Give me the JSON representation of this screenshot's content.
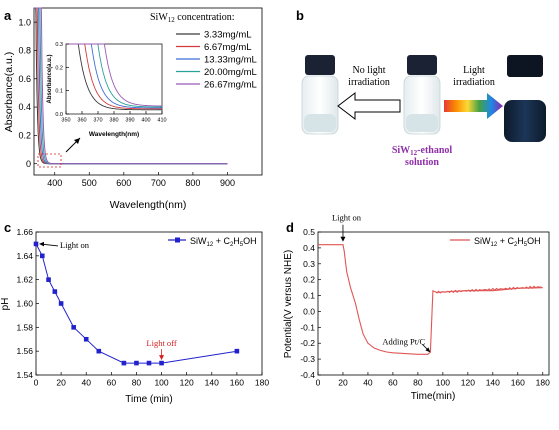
{
  "panels": {
    "a": "a",
    "b": "b",
    "c": "c",
    "d": "d"
  },
  "chart_data": [
    {
      "id": "a",
      "type": "line",
      "xlabel": "Wavelength(nm)",
      "ylabel": "Absorbance(a.u.)",
      "xlim": [
        340,
        1000
      ],
      "ylim": [
        -0.08,
        1.1
      ],
      "xticks": [
        "400",
        "500",
        "600",
        "700",
        "800",
        "900"
      ],
      "yticks": [
        "0",
        "0.2",
        "0.4",
        "0.6",
        "0.8",
        "1.0"
      ],
      "legend_title_pre": "SiW",
      "legend_title_sub": "12",
      "legend_title_post": " concentration:",
      "legend_position": "top-right",
      "series": [
        {
          "name": "3.33mg/mL",
          "color": "#3a3a3a",
          "edge": 363
        },
        {
          "name": "6.67mg/mL",
          "color": "#d43a3a",
          "edge": 367
        },
        {
          "name": "13.33mg/mL",
          "color": "#3e6fd8",
          "edge": 371
        },
        {
          "name": "20.00mg/mL",
          "color": "#2aa198",
          "edge": 375
        },
        {
          "name": "26.67mg/mL",
          "color": "#9b59b6",
          "edge": 379
        }
      ],
      "inset": {
        "xlabel": "Wavelength(nm)",
        "ylabel": "Absorbance(a.u.)",
        "xlim": [
          350,
          410
        ],
        "ylim": [
          0,
          0.3
        ],
        "xticks": [
          "350",
          "360",
          "370",
          "380",
          "390",
          "400",
          "410"
        ],
        "yticks": [
          "0.0",
          "0.1",
          "0.2",
          "0.3"
        ]
      }
    },
    {
      "id": "c",
      "type": "line",
      "xlabel": "Time (min)",
      "ylabel": "pH",
      "xlim": [
        0,
        180
      ],
      "ylim": [
        1.54,
        1.66
      ],
      "xticks": [
        "0",
        "20",
        "40",
        "60",
        "80",
        "100",
        "120",
        "140",
        "160",
        "180"
      ],
      "yticks": [
        "1.54",
        "1.56",
        "1.58",
        "1.60",
        "1.62",
        "1.64",
        "1.66"
      ],
      "legend_position": "top-right",
      "series": [
        {
          "name_pre": "SiW",
          "name_sub1": "12",
          "name_mid": " + C",
          "name_sub2": "2",
          "name_mid2": "H",
          "name_sub3": "5",
          "name_post": "OH",
          "color": "#2222cc",
          "x": [
            0,
            5,
            10,
            15,
            20,
            30,
            40,
            50,
            70,
            80,
            90,
            100,
            160
          ],
          "y": [
            1.65,
            1.64,
            1.62,
            1.61,
            1.6,
            1.58,
            1.57,
            1.56,
            1.55,
            1.55,
            1.55,
            1.55,
            1.56
          ]
        }
      ],
      "annotations": [
        {
          "text": "Light on",
          "x": 0,
          "y": 1.65,
          "color": "#000000"
        },
        {
          "text": "Light off",
          "x": 100,
          "y": 1.55,
          "color": "#d62020"
        }
      ]
    },
    {
      "id": "d",
      "type": "line",
      "xlabel": "Time(min)",
      "ylabel": "Potential(V versus NHE)",
      "xlim": [
        0,
        185
      ],
      "ylim": [
        -0.4,
        0.5
      ],
      "xticks": [
        "0",
        "20",
        "40",
        "60",
        "80",
        "100",
        "120",
        "140",
        "160",
        "180"
      ],
      "yticks": [
        "-0.4",
        "-0.3",
        "-0.2",
        "-0.1",
        "0.0",
        "0.1",
        "0.2",
        "0.3",
        "0.4",
        "0.5"
      ],
      "legend_position": "top-right",
      "series": [
        {
          "name_pre": "SiW",
          "name_sub1": "12",
          "name_mid": " + C",
          "name_sub2": "2",
          "name_mid2": "H",
          "name_sub3": "5",
          "name_post": "OH",
          "color": "#e05555",
          "x": [
            0,
            10,
            20,
            21,
            23,
            26,
            30,
            33,
            36,
            40,
            45,
            50,
            55,
            60,
            70,
            80,
            88,
            90,
            92,
            95,
            100,
            120,
            140,
            160,
            180
          ],
          "y": [
            0.42,
            0.42,
            0.42,
            0.38,
            0.25,
            0.15,
            0.05,
            -0.05,
            -0.14,
            -0.2,
            -0.23,
            -0.245,
            -0.255,
            -0.26,
            -0.265,
            -0.27,
            -0.27,
            -0.255,
            0.13,
            0.12,
            0.12,
            0.13,
            0.135,
            0.14,
            0.155
          ]
        }
      ],
      "annotations": [
        {
          "text": "Light on",
          "x": 20,
          "y": 0.42
        },
        {
          "text": "Adding Pt/C",
          "x": 90,
          "y": -0.27
        }
      ]
    }
  ],
  "diagram_b": {
    "no_light_line1": "No light",
    "no_light_line2": "irradiation",
    "light_line1": "Light",
    "light_line2": "irradiation",
    "solution_pre": "SiW",
    "solution_sub": "12",
    "solution_post": "-ethanol",
    "solution_line2": "solution",
    "solution_color": "#8e2fa8"
  }
}
